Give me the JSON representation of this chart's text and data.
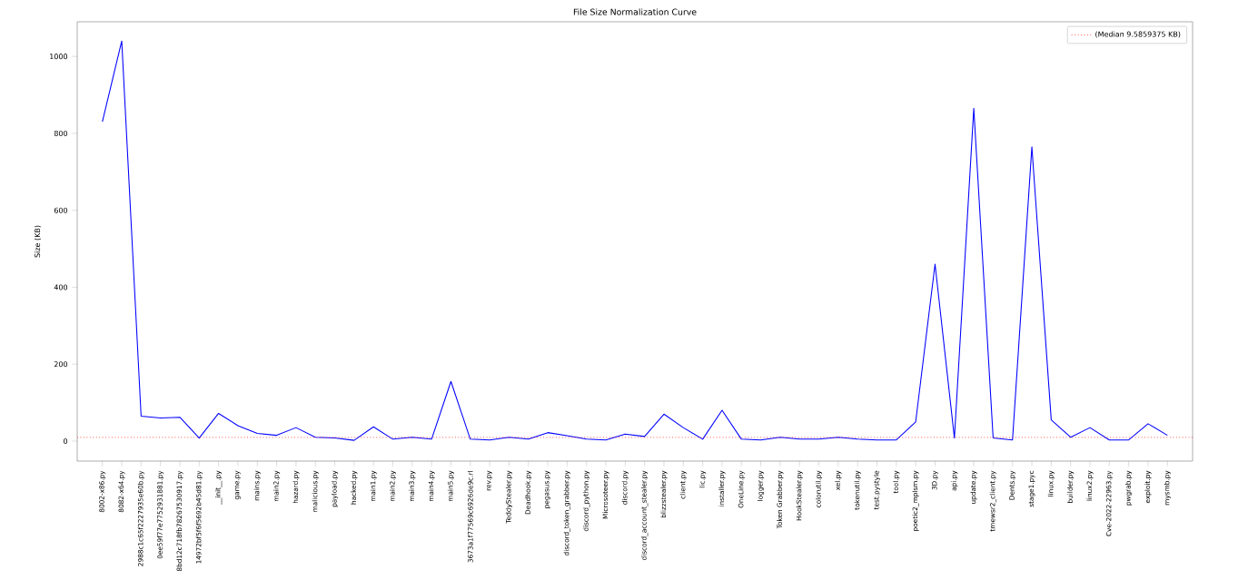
{
  "chart_data": {
    "type": "line",
    "title": "File Size Normalization Curve",
    "ylabel": "Size (KB)",
    "categories": [
      "8002-x86.py",
      "8082-x64.py",
      "2988c1c65f2227935e60b.py",
      "0ee59f77e7752931881.py",
      "8bd12c718fb78267530917.py",
      "14972bf5f6f5692b45d81.py",
      "__init__.py",
      "game.py",
      "mains.py",
      "main2.py",
      "hazard.py",
      "malicious.py",
      "payload.py",
      "hacked.py",
      "main1.py",
      "main2.py",
      "main3.py",
      "main4.py",
      "main5.py",
      "3673a1f77569c6926de9c.rl",
      "rev.py",
      "TeddyStealer.py",
      "Deadhook.py",
      "pegasus.py",
      "discord_token_grabber.py",
      "discord_python.py",
      "Microsoteer.py",
      "discord.py",
      "discord_account_stealer.py",
      "blizzstealer.py",
      "client.py",
      "lic.py",
      "installer.py",
      "OneLine.py",
      "logger.py",
      "Token Grabber.py",
      "HookStealer.py",
      "colorutil.py",
      "xel.py",
      "tokenutil.py",
      "test.pystyle",
      "tool.py",
      "poetic2_mplsm.py",
      "3D.py",
      "api.py",
      "update.py",
      "tmewsr2_client.py",
      "Dents.py",
      "stage1.pyc",
      "linux.py",
      "builder.py",
      "linux2.py",
      "Cve-2022-22963.py",
      "pwgrab.py",
      "exploit.py",
      "mysmb.py"
    ],
    "series": [
      {
        "color": "#0000ff",
        "values": [
          830,
          1040,
          65,
          60,
          62,
          8,
          72,
          40,
          20,
          15,
          35,
          10,
          8,
          2,
          37,
          5,
          10,
          5,
          155,
          5,
          3,
          10,
          5,
          22,
          14,
          5,
          3,
          18,
          12,
          70,
          35,
          5,
          80,
          5,
          3,
          10,
          5,
          5,
          10,
          5,
          3,
          3,
          50,
          460,
          8,
          865,
          8,
          3,
          765,
          55,
          10,
          35,
          3,
          3,
          45,
          15
        ]
      }
    ],
    "ylim": [
      -52,
      1090
    ],
    "yticks": [
      0,
      200,
      400,
      600,
      800,
      1000
    ],
    "ref_lines": [
      {
        "axis": "y",
        "value": 9.5859375,
        "label": "(Median 9.5859375 KB)",
        "color": "#ff0000",
        "line_style": "dotted"
      }
    ],
    "legend": "top right",
    "marker": "none",
    "line_style": "solid",
    "grid": false
  }
}
